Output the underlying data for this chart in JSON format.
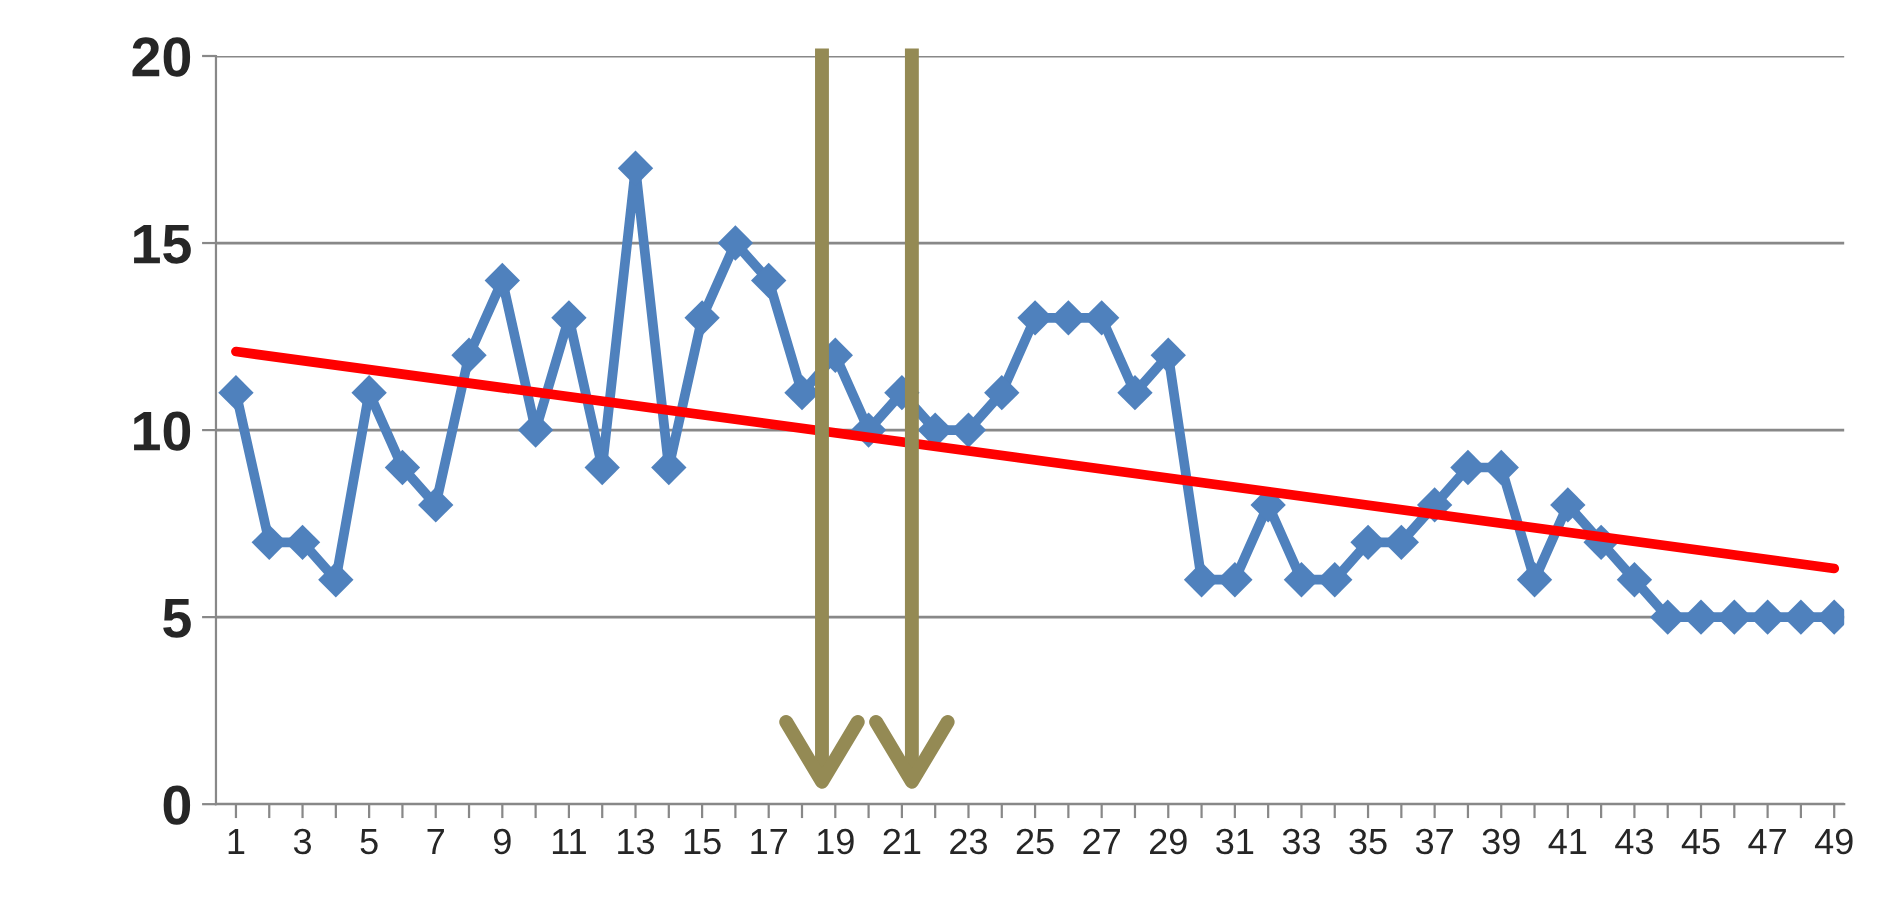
{
  "chart_data": {
    "type": "line",
    "x": [
      1,
      2,
      3,
      4,
      5,
      6,
      7,
      8,
      9,
      10,
      11,
      12,
      13,
      14,
      15,
      16,
      17,
      18,
      19,
      20,
      21,
      22,
      23,
      24,
      25,
      26,
      27,
      28,
      29,
      30,
      31,
      32,
      33,
      34,
      35,
      36,
      37,
      38,
      39,
      40,
      41,
      42,
      43,
      44,
      45,
      46,
      47,
      48,
      49
    ],
    "series": [
      {
        "color": "#4f81bd",
        "marker": "diamond",
        "values": [
          11,
          7,
          7,
          6,
          11,
          9,
          8,
          12,
          14,
          10,
          13,
          9,
          17,
          9,
          13,
          15,
          14,
          11,
          12,
          10,
          11,
          10,
          10,
          11,
          13,
          13,
          13,
          11,
          12,
          6,
          6,
          8,
          6,
          6,
          7,
          7,
          8,
          9,
          9,
          6,
          8,
          7,
          6,
          5,
          5,
          5,
          5,
          5,
          5
        ]
      },
      {
        "color": "#ff0000",
        "marker": "none",
        "x": [
          1,
          49
        ],
        "values": [
          12.1,
          6.3
        ]
      }
    ],
    "xlim": [
      0.4,
      49.3
    ],
    "xticks": [
      1,
      {
        "value": 2,
        "label": null
      },
      3,
      {
        "value": 4,
        "label": null
      },
      5,
      {
        "value": 6,
        "label": null
      },
      7,
      {
        "value": 8,
        "label": null
      },
      9,
      {
        "value": 10,
        "label": null
      },
      11,
      {
        "value": 12,
        "label": null
      },
      13,
      {
        "value": 14,
        "label": null
      },
      15,
      {
        "value": 16,
        "label": null
      },
      17,
      {
        "value": 18,
        "label": null
      },
      19,
      {
        "value": 20,
        "label": null
      },
      21,
      {
        "value": 22,
        "label": null
      },
      23,
      {
        "value": 24,
        "label": null
      },
      25,
      {
        "value": 26,
        "label": null
      },
      27,
      {
        "value": 28,
        "label": null
      },
      29,
      {
        "value": 30,
        "label": null
      },
      31,
      {
        "value": 32,
        "label": null
      },
      33,
      {
        "value": 34,
        "label": null
      },
      35,
      {
        "value": 36,
        "label": null
      },
      37,
      {
        "value": 38,
        "label": null
      },
      39,
      {
        "value": 40,
        "label": null
      },
      41,
      {
        "value": 42,
        "label": null
      },
      43,
      {
        "value": 44,
        "label": null
      },
      45,
      {
        "value": 46,
        "label": null
      },
      47,
      {
        "value": 48,
        "label": null
      },
      49
    ],
    "ylim": [
      0,
      20
    ],
    "yticks": [
      0,
      5,
      10,
      15,
      20
    ],
    "grid": "y",
    "legend": false,
    "ref_lines": [
      {
        "axis": "x",
        "value": 18.6,
        "color": "#948a54"
      },
      {
        "axis": "x",
        "value": 21.3,
        "color": "#948a54"
      }
    ]
  }
}
